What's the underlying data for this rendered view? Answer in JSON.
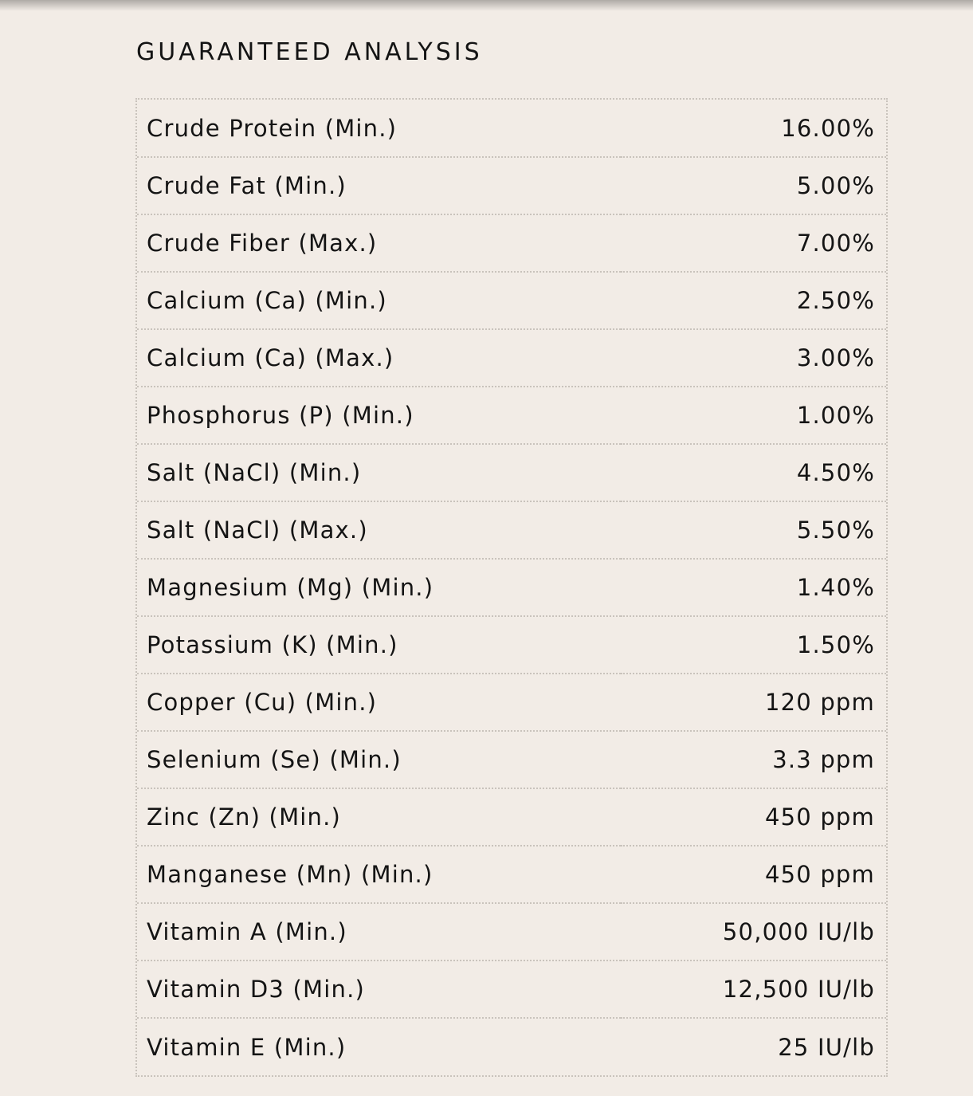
{
  "title": "GUARANTEED ANALYSIS",
  "rows": [
    {
      "label": "Crude Protein (Min.)",
      "value": "16.00%"
    },
    {
      "label": "Crude Fat (Min.)",
      "value": "5.00%"
    },
    {
      "label": "Crude Fiber (Max.)",
      "value": "7.00%"
    },
    {
      "label": "Calcium (Ca) (Min.)",
      "value": "2.50%"
    },
    {
      "label": "Calcium (Ca) (Max.)",
      "value": "3.00%"
    },
    {
      "label": "Phosphorus (P) (Min.)",
      "value": "1.00%"
    },
    {
      "label": "Salt (NaCl) (Min.)",
      "value": "4.50%"
    },
    {
      "label": "Salt (NaCl) (Max.)",
      "value": "5.50%"
    },
    {
      "label": "Magnesium (Mg) (Min.)",
      "value": "1.40%"
    },
    {
      "label": "Potassium (K) (Min.)",
      "value": "1.50%"
    },
    {
      "label": "Copper (Cu) (Min.)",
      "value": "120 ppm"
    },
    {
      "label": "Selenium (Se) (Min.)",
      "value": "3.3 ppm"
    },
    {
      "label": "Zinc (Zn) (Min.)",
      "value": "450 ppm"
    },
    {
      "label": "Manganese (Mn) (Min.)",
      "value": "450 ppm"
    },
    {
      "label": "Vitamin A (Min.)",
      "value": "50,000 IU/lb"
    },
    {
      "label": "Vitamin D3 (Min.)",
      "value": "12,500 IU/lb"
    },
    {
      "label": "Vitamin E (Min.)",
      "value": "25 IU/lb"
    }
  ]
}
